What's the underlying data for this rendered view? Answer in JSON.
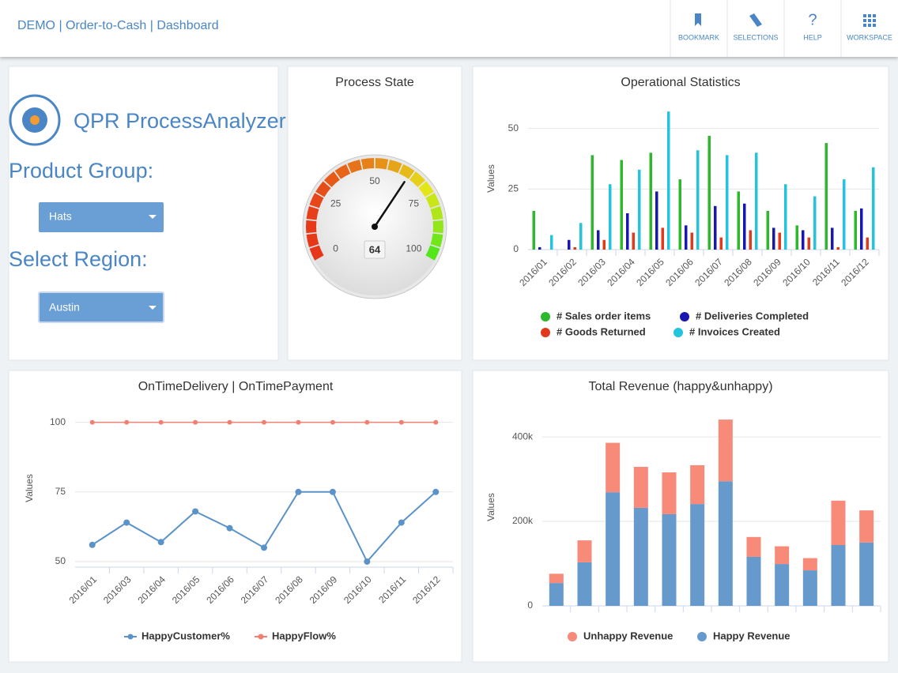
{
  "header": {
    "title": "DEMO | Order-to-Cash | Dashboard"
  },
  "nav": [
    {
      "label": "BOOKMARK"
    },
    {
      "label": "SELECTIONS"
    },
    {
      "label": "HELP"
    },
    {
      "label": "WORKSPACE"
    }
  ],
  "panel": {
    "app_name": "QPR ProcessAnalyzer",
    "filters": [
      {
        "label": "Product Group:",
        "value": "Hats"
      },
      {
        "label": "Select Region:",
        "value": "Austin"
      }
    ]
  },
  "chart_data": [
    {
      "type": "gauge",
      "title": "Process State",
      "value": 64,
      "ylim": [
        0,
        100
      ],
      "yticks": [
        0,
        25,
        50,
        75,
        100
      ]
    },
    {
      "type": "bar",
      "title": "Operational Statistics",
      "ylabel": "Values",
      "categories": [
        "2016/01",
        "2016/02",
        "2016/03",
        "2016/04",
        "2016/05",
        "2016/06",
        "2016/07",
        "2016/08",
        "2016/09",
        "2016/10",
        "2016/11",
        "2016/12"
      ],
      "series": [
        {
          "name": "# Sales order items",
          "color": "#2db82d",
          "values": [
            16,
            0,
            39,
            37,
            40,
            29,
            47,
            24,
            16,
            10,
            44,
            16
          ]
        },
        {
          "name": "# Deliveries Completed",
          "color": "#1818b0",
          "values": [
            1,
            4,
            8,
            15,
            24,
            10,
            18,
            19,
            9,
            8,
            9,
            17
          ]
        },
        {
          "name": "# Goods Returned",
          "color": "#e03a1c",
          "values": [
            0,
            1,
            4,
            7,
            9,
            7,
            5,
            8,
            7,
            5,
            1,
            5
          ]
        },
        {
          "name": "# Invoices Created",
          "color": "#22c5dc",
          "values": [
            6,
            11,
            27,
            33,
            57,
            41,
            39,
            40,
            27,
            22,
            29,
            34
          ]
        }
      ],
      "ylim": [
        0,
        60
      ],
      "yticks": [
        0,
        25,
        50
      ],
      "grid": true
    },
    {
      "type": "line",
      "title": "OnTimeDelivery | OnTimePayment",
      "ylabel": "Values",
      "categories": [
        "2016/01",
        "2016/03",
        "2016/04",
        "2016/05",
        "2016/06",
        "2016/07",
        "2016/08",
        "2016/09",
        "2016/10",
        "2016/11",
        "2016/12"
      ],
      "series": [
        {
          "name": "HappyCustomer%",
          "color": "#5b93c9",
          "values": [
            56,
            64,
            57,
            68,
            62,
            55,
            75,
            75,
            50,
            64,
            75
          ]
        },
        {
          "name": "HappyFlow%",
          "color": "#f08070",
          "values": [
            100,
            100,
            100,
            100,
            100,
            100,
            100,
            100,
            100,
            100,
            100
          ]
        }
      ],
      "ylim": [
        48,
        105
      ],
      "yticks": [
        50,
        75,
        100
      ],
      "grid": true
    },
    {
      "type": "bar",
      "stacked": true,
      "title": "Total Revenue (happy&unhappy)",
      "ylabel": "Values",
      "categories": [
        null,
        null,
        null,
        null,
        null,
        null,
        null,
        null,
        null,
        null,
        null,
        null
      ],
      "series": [
        {
          "name": "Unhappy Revenue",
          "color": "#f88a7a",
          "values": [
            22000,
            52000,
            117000,
            97000,
            99000,
            92000,
            146000,
            47000,
            42000,
            29000,
            105000,
            76000
          ]
        },
        {
          "name": "Happy Revenue",
          "color": "#6699cc",
          "values": [
            54000,
            103000,
            269000,
            232000,
            217000,
            241000,
            295000,
            116000,
            99000,
            84000,
            144000,
            150000
          ]
        }
      ],
      "ylim": [
        0,
        460000
      ],
      "yticks": [
        0,
        {
          "value": 200000,
          "label": "200k"
        },
        {
          "value": 400000,
          "label": "400k"
        }
      ],
      "grid": true
    }
  ]
}
